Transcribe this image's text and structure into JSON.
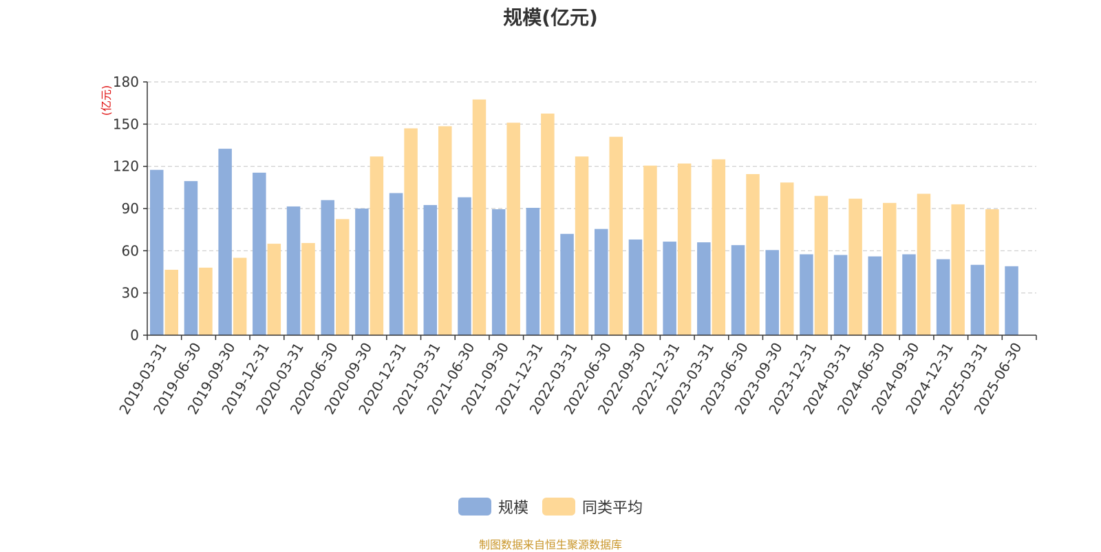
{
  "chart_data": {
    "type": "bar",
    "title": "规模(亿元)",
    "ylabel": "(亿元)",
    "xlabel": "",
    "ylim": [
      0,
      180
    ],
    "yticks": [
      0,
      30,
      60,
      90,
      120,
      150,
      180
    ],
    "grid": true,
    "legend_position": "bottom-center",
    "categories": [
      "2019-03-31",
      "2019-06-30",
      "2019-09-30",
      "2019-12-31",
      "2020-03-31",
      "2020-06-30",
      "2020-09-30",
      "2020-12-31",
      "2021-03-31",
      "2021-06-30",
      "2021-09-30",
      "2021-12-31",
      "2022-03-31",
      "2022-06-30",
      "2022-09-30",
      "2022-12-31",
      "2023-03-31",
      "2023-06-30",
      "2023-09-30",
      "2023-12-31",
      "2024-03-31",
      "2024-06-30",
      "2024-09-30",
      "2024-12-31",
      "2025-03-31",
      "2025-06-30"
    ],
    "series": [
      {
        "name": "规模",
        "color": "#8eaedc",
        "values": [
          117.5,
          109.5,
          132.5,
          115.5,
          91.5,
          96,
          90,
          101,
          92.5,
          98,
          89.5,
          90.5,
          72,
          75.5,
          68,
          66.5,
          66,
          64,
          60.5,
          57.5,
          57,
          56,
          57.5,
          54,
          50,
          49
        ]
      },
      {
        "name": "同类平均",
        "color": "#fed897",
        "values": [
          46.5,
          48,
          55,
          65,
          65.5,
          82.5,
          127,
          147,
          148.5,
          167.5,
          151,
          157.5,
          127,
          141,
          120.5,
          122,
          125,
          114.5,
          108.5,
          99,
          97,
          94,
          100.5,
          93,
          89.5,
          null
        ]
      }
    ]
  },
  "source_note": "制图数据来自恒生聚源数据库"
}
